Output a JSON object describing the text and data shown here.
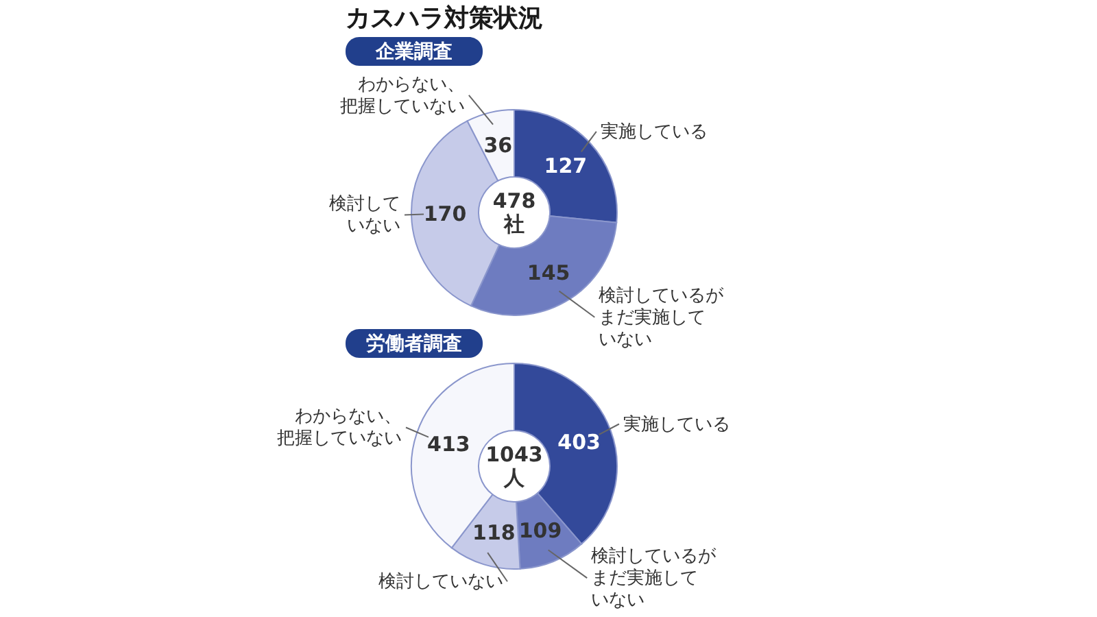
{
  "chart_data": [
    {
      "type": "donut",
      "title": "カスハラ対策状況",
      "subtitle": "企業調査",
      "categories": [
        "実施している",
        "検討しているがまだ実施していない",
        "検討していない",
        "わからない、把握していない"
      ],
      "values": [
        127,
        145,
        170,
        36
      ],
      "colors": [
        "#33499a",
        "#6e7cc0",
        "#c6cbe9",
        "#f6f7fc"
      ],
      "data_labels": true,
      "annotations": [
        "478社"
      ]
    },
    {
      "type": "donut",
      "subtitle": "労働者調査",
      "categories": [
        "実施している",
        "検討しているがまだ実施していない",
        "検討していない",
        "わからない、把握していない"
      ],
      "values": [
        403,
        109,
        118,
        413
      ],
      "colors": [
        "#33499a",
        "#6e7cc0",
        "#c6cbe9",
        "#f6f7fc"
      ],
      "data_labels": true,
      "annotations": [
        "1043人"
      ]
    }
  ]
}
